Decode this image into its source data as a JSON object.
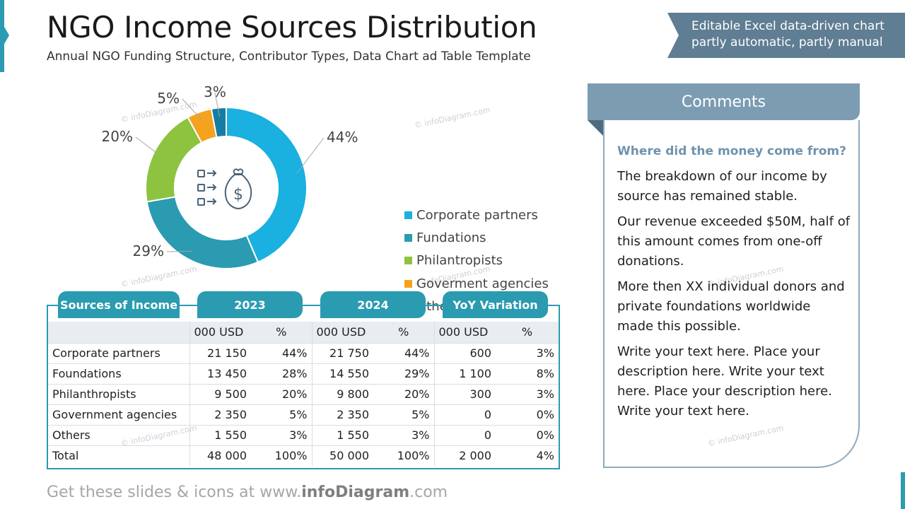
{
  "header": {
    "title": "NGO Income Sources Distribution",
    "subtitle": "Annual NGO Funding Structure, Contributor Types, Data Chart ad Table Template",
    "note_line1": "Editable Excel data-driven chart",
    "note_line2": "partly automatic, partly manual"
  },
  "watermark": "© infoDiagram.com",
  "chart_data": {
    "type": "pie",
    "donut": true,
    "categories": [
      "Corporate partners",
      "Fundations",
      "Philantropists",
      "Goverment agencies",
      "Others"
    ],
    "values": [
      44,
      29,
      20,
      5,
      3
    ],
    "labels": [
      "44%",
      "29%",
      "20%",
      "5%",
      "3%"
    ],
    "colors": [
      "#1ab0e0",
      "#2a9bb0",
      "#8dc33f",
      "#f5a21d",
      "#157da3"
    ],
    "legend_position": "right"
  },
  "table": {
    "headers": [
      "Sources of Income",
      "2023",
      "2024",
      "YoY Variation"
    ],
    "units": [
      "",
      "000 USD",
      "%",
      "000 USD",
      "%",
      "000 USD",
      "%"
    ],
    "rows": [
      [
        "Corporate partners",
        "21 150",
        "44%",
        "21 750",
        "44%",
        "600",
        "3%"
      ],
      [
        "Foundations",
        "13 450",
        "28%",
        "14 550",
        "29%",
        "1 100",
        "8%"
      ],
      [
        "Philanthropists",
        "9 500",
        "20%",
        "9 800",
        "20%",
        "300",
        "3%"
      ],
      [
        "Government agencies",
        "2 350",
        "5%",
        "2 350",
        "5%",
        "0",
        "0%"
      ],
      [
        "Others",
        "1 550",
        "3%",
        "1 550",
        "3%",
        "0",
        "0%"
      ],
      [
        "Total",
        "48 000",
        "100%",
        "50 000",
        "100%",
        "2 000",
        "4%"
      ]
    ]
  },
  "comments": {
    "title": "Comments",
    "question": "Where did the money come from?",
    "paragraphs": [
      "The breakdown of our income by source has remained stable.",
      "Our revenue exceeded $50M, half of this amount comes from one-off donations.",
      "More then XX individual donors and private foundations worldwide made this possible.",
      "Write your text here. Place your description here. Write your text here. Place your description here. Write your text here."
    ]
  },
  "footer": {
    "prefix": "Get these slides & icons at www.",
    "brand": "infoDiagram",
    "suffix": ".com"
  }
}
